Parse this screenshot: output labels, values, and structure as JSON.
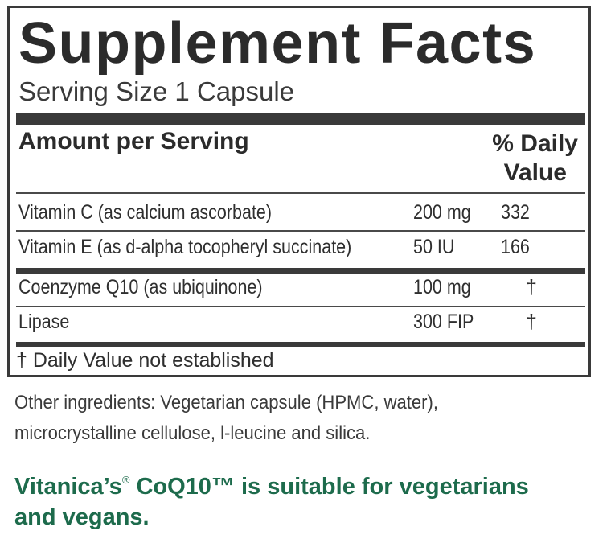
{
  "label": {
    "title": "Supplement Facts",
    "serving_size": "Serving Size 1 Capsule",
    "header": {
      "amount_label": "Amount per Serving",
      "dv_line1": "% Daily",
      "dv_line2": "Value"
    },
    "rows": [
      {
        "name": "Vitamin C (as calcium ascorbate)",
        "amount": "200 mg",
        "dv": "332"
      },
      {
        "name": "Vitamin E (as d-alpha tocopheryl succinate)",
        "amount": "50 IU",
        "dv": "166"
      },
      {
        "name": "Coenzyme Q10 (as ubiquinone)",
        "amount": "100 mg",
        "dv": "†"
      },
      {
        "name": "Lipase",
        "amount": "300 FIP",
        "dv": "†"
      }
    ],
    "footnote": "† Daily Value not established"
  },
  "other_ingredients": {
    "line1": "Other ingredients: Vegetarian capsule (HPMC, water),",
    "line2": "microcrystalline cellulose, l-leucine and silica."
  },
  "vegetarian_note": {
    "brand": "Vitanica’s",
    "registered": "®",
    "rest_line1": " CoQ10™ is suitable for vegetarians",
    "line2": "and vegans."
  },
  "colors": {
    "text": "#2b2b2b",
    "rules": "#3a3a3a",
    "note_green": "#1d6b4c"
  }
}
